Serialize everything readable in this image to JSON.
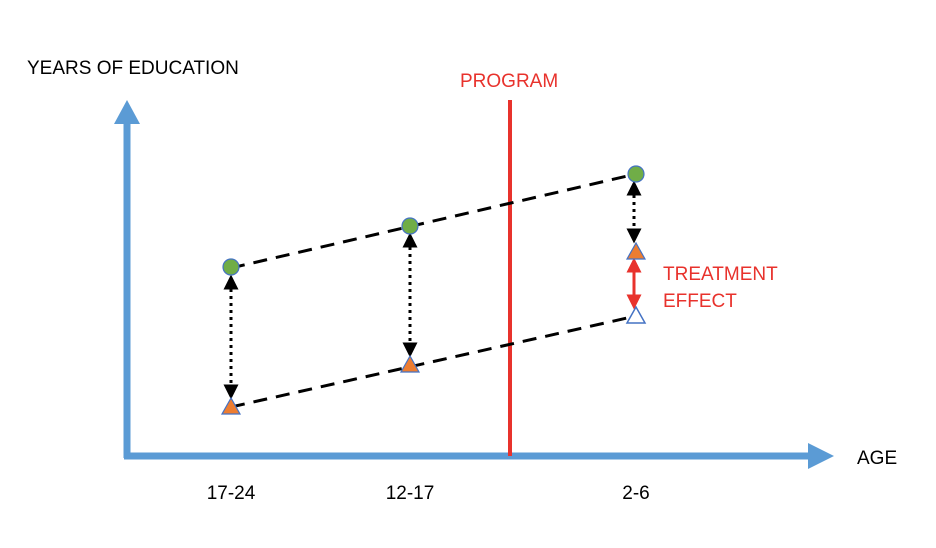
{
  "y_axis_label": "YEARS OF EDUCATION",
  "x_axis_label": "AGE",
  "program_label": "PROGRAM",
  "treatment_effect_label": [
    "TREATMENT",
    "EFFECT"
  ],
  "x_categories": [
    "17-24",
    "12-17",
    "2-6"
  ],
  "colors": {
    "axis": "#5b9bd5",
    "program_line": "#e8322c",
    "label_red": "#e8322c",
    "circle_fill": "#70ad47",
    "triangle_fill": "#ed7d31",
    "triangle_stroke": "#4472c4",
    "dashed_line": "#000000"
  },
  "markers": {
    "circle": "green-circle-marker",
    "triangle": "orange-triangle-marker",
    "hollow_triangle": "hollow-triangle-marker"
  }
}
